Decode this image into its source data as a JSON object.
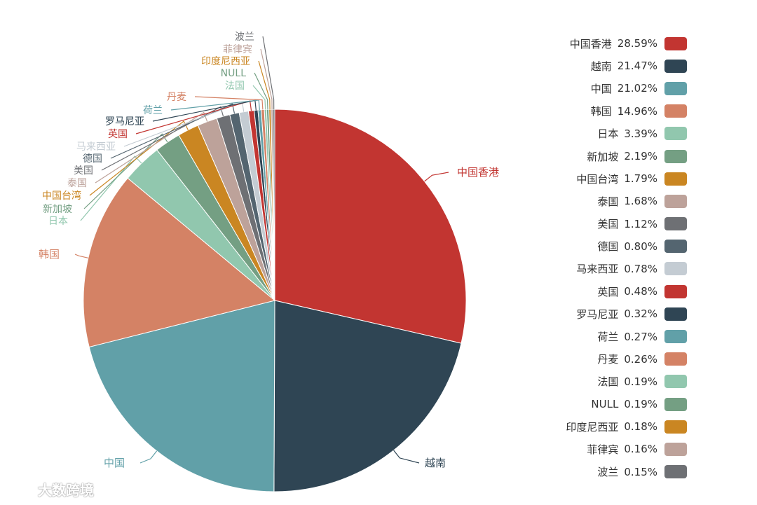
{
  "chart_data": {
    "type": "pie",
    "start_angle_deg": 90,
    "direction": "clockwise",
    "series": [
      {
        "name": "中国香港",
        "label": "中国香港",
        "percent_label": "28.59%",
        "value": 28.59,
        "color": "#c23531"
      },
      {
        "name": "越南",
        "label": "越南",
        "percent_label": "21.47%",
        "value": 21.47,
        "color": "#2f4554"
      },
      {
        "name": "中国",
        "label": "中国",
        "percent_label": "21.02%",
        "value": 21.02,
        "color": "#61a0a8"
      },
      {
        "name": "韩国",
        "label": "韩国",
        "percent_label": "14.96%",
        "value": 14.96,
        "color": "#d48265"
      },
      {
        "name": "日本",
        "label": "日本",
        "percent_label": "3.39%",
        "value": 3.39,
        "color": "#91c7ae"
      },
      {
        "name": "新加坡",
        "label": "新加坡",
        "percent_label": "2.19%",
        "value": 2.19,
        "color": "#749f83"
      },
      {
        "name": "中国台湾",
        "label": "中国台湾",
        "percent_label": "1.79%",
        "value": 1.79,
        "color": "#ca8622"
      },
      {
        "name": "泰国",
        "label": "泰国",
        "percent_label": "1.68%",
        "value": 1.68,
        "color": "#bda29a"
      },
      {
        "name": "美国",
        "label": "美国",
        "percent_label": "1.12%",
        "value": 1.12,
        "color": "#6e7074"
      },
      {
        "name": "德国",
        "label": "德国",
        "percent_label": "0.80%",
        "value": 0.8,
        "color": "#546570"
      },
      {
        "name": "马来西亚",
        "label": "马来西亚",
        "percent_label": "0.78%",
        "value": 0.78,
        "color": "#c4ccd3"
      },
      {
        "name": "英国",
        "label": "英国",
        "percent_label": "0.48%",
        "value": 0.48,
        "color": "#c23531"
      },
      {
        "name": "罗马尼亚",
        "label": "罗马尼亚",
        "percent_label": "0.32%",
        "value": 0.32,
        "color": "#2f4554"
      },
      {
        "name": "荷兰",
        "label": "荷兰",
        "percent_label": "0.27%",
        "value": 0.27,
        "color": "#61a0a8"
      },
      {
        "name": "丹麦",
        "label": "丹麦",
        "percent_label": "0.26%",
        "value": 0.26,
        "color": "#d48265"
      },
      {
        "name": "法国",
        "label": "法国",
        "percent_label": "0.19%",
        "value": 0.19,
        "color": "#91c7ae"
      },
      {
        "name": "NULL",
        "label": "NULL",
        "percent_label": "0.19%",
        "value": 0.19,
        "color": "#749f83"
      },
      {
        "name": "印度尼西亚",
        "label": "印度尼西亚",
        "percent_label": "0.18%",
        "value": 0.18,
        "color": "#ca8622"
      },
      {
        "name": "菲律宾",
        "label": "菲律宾",
        "percent_label": "0.16%",
        "value": 0.16,
        "color": "#bda29a"
      },
      {
        "name": "波兰",
        "label": "波兰",
        "percent_label": "0.15%",
        "value": 0.15,
        "color": "#6e7074"
      }
    ],
    "legend_position": "right"
  },
  "watermark": {
    "text": "大数跨境"
  }
}
